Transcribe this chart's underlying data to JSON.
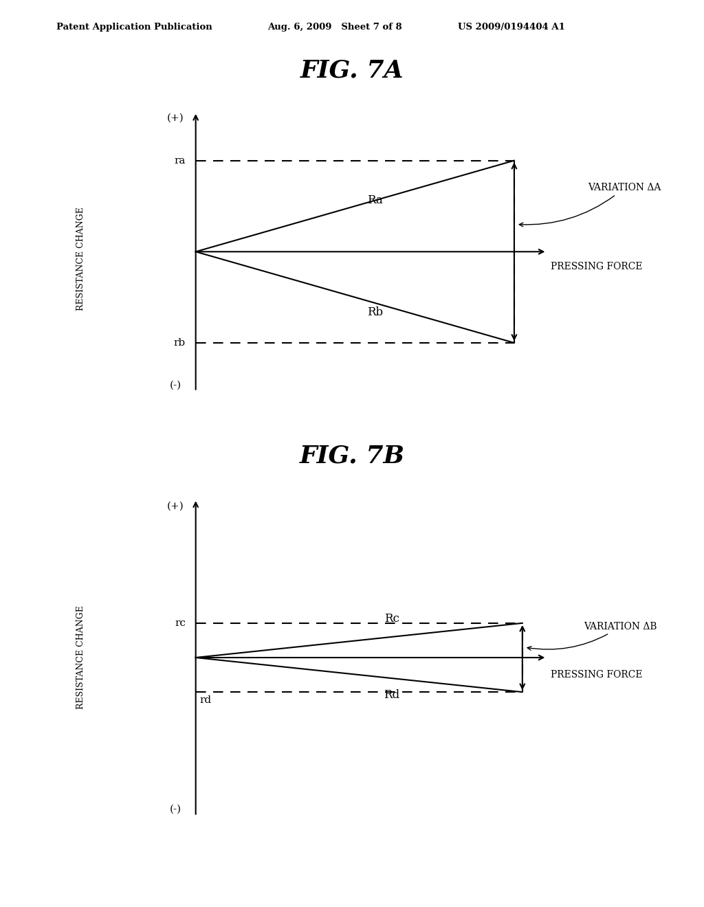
{
  "bg_color": "#ffffff",
  "header_left": "Patent Application Publication",
  "header_mid": "Aug. 6, 2009   Sheet 7 of 8",
  "header_right": "US 2009/0194404 A1",
  "fig7a_title": "FIG. 7A",
  "fig7b_title": "FIG. 7B",
  "ylabel": "RESISTANCE CHANGE",
  "xlabel_a": "PRESSING FORCE",
  "xlabel_b": "PRESSING FORCE",
  "variation_a": "VARIATION ΔA",
  "variation_b": "VARIATION ΔB",
  "ra_label": "ra",
  "rb_label": "rb",
  "rc_label": "rc",
  "rd_label": "rd",
  "Ra_label": "Ra",
  "Rb_label": "Rb",
  "Rc_label": "Rc",
  "Rd_label": "Rd",
  "plus_label": "(+)",
  "minus_label": "(-)",
  "line_color": "#000000",
  "lw": 1.5
}
